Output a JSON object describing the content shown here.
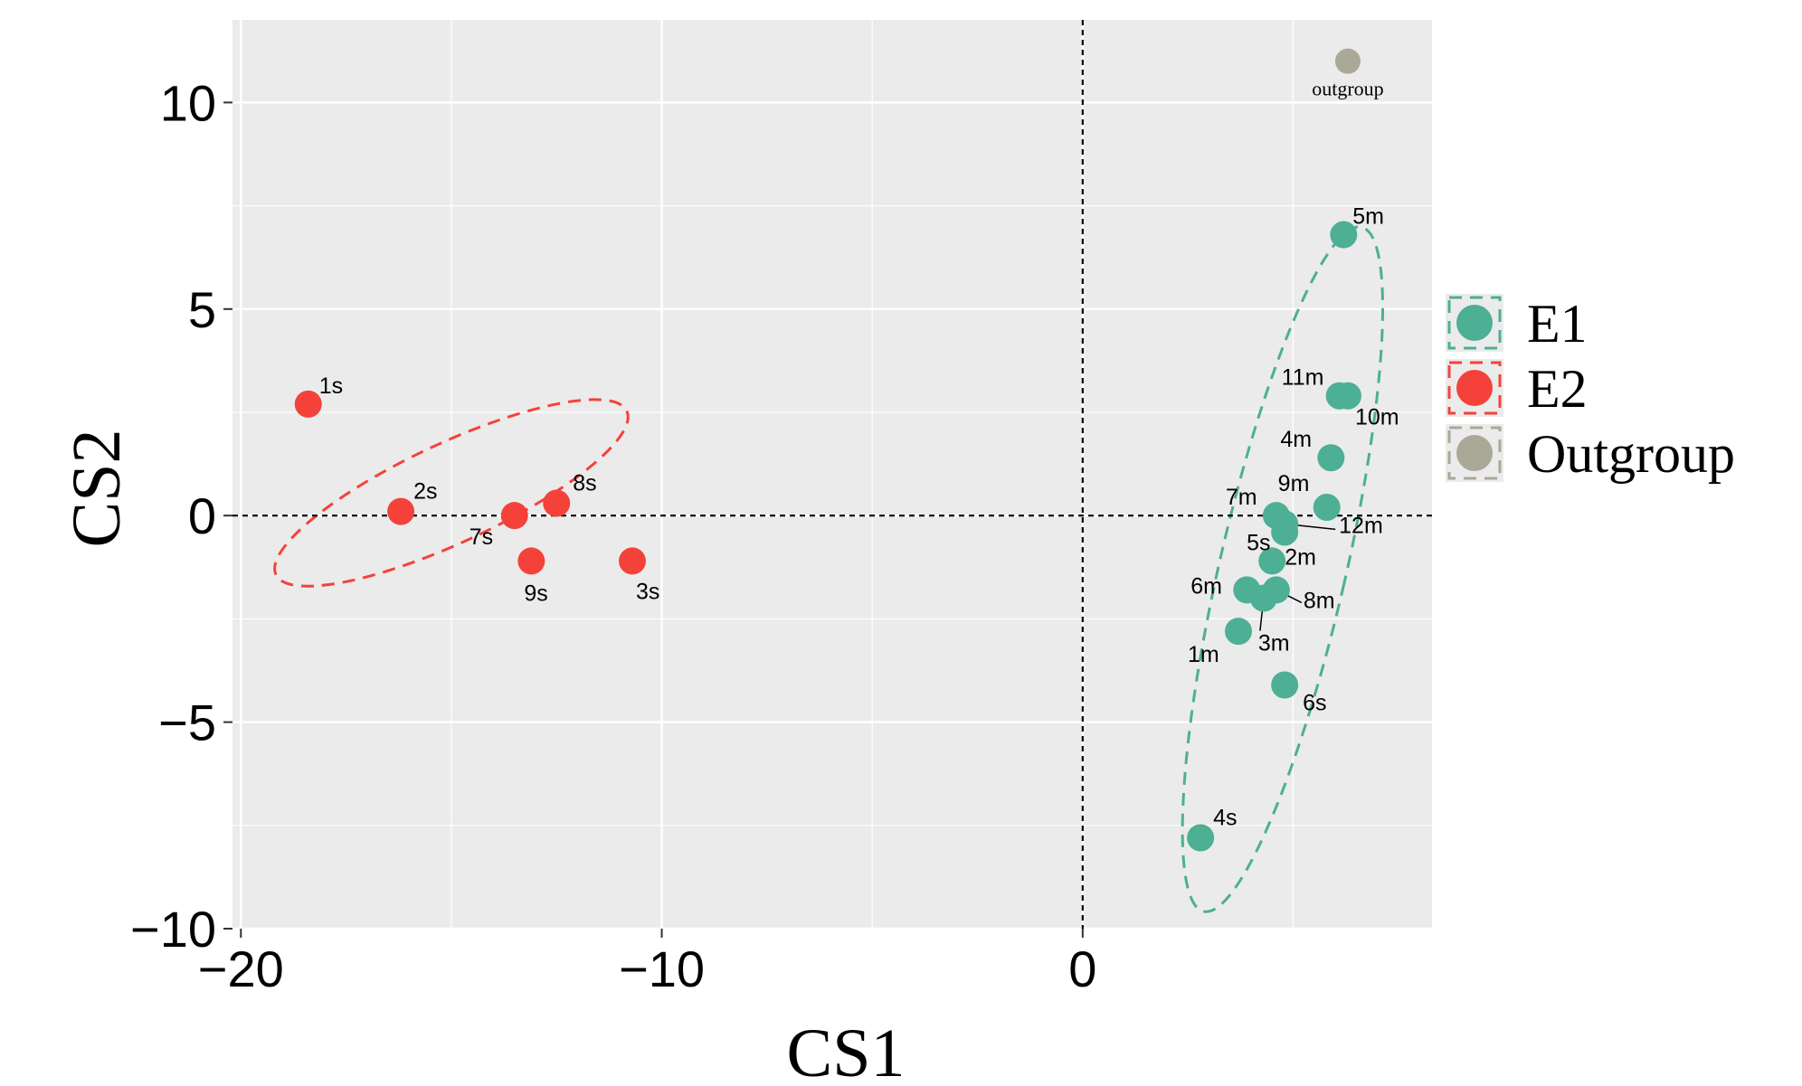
{
  "chart_data": {
    "type": "scatter",
    "xlabel": "CS1",
    "ylabel": "CS2",
    "xlim": [
      -20.2,
      8.3
    ],
    "ylim": [
      -10.0,
      12.0
    ],
    "xticks": [
      -20,
      -10,
      0
    ],
    "yticks": [
      10,
      5,
      0,
      -5,
      -10
    ],
    "xtick_labels": [
      "−20",
      "−10",
      "0"
    ],
    "ytick_labels": [
      "10",
      "5",
      "0",
      "−5",
      "−10"
    ],
    "grid": true,
    "reference_lines": {
      "x": 0,
      "y": 0
    },
    "legend_position": "right",
    "colors": {
      "E1": "#4daf94",
      "E2": "#f4423a",
      "Outgroup": "#aaa897"
    },
    "series": [
      {
        "name": "E1",
        "color": "#4daf94",
        "points": [
          {
            "label": "5m",
            "x": 6.2,
            "y": 6.8
          },
          {
            "label": "11m",
            "x": 6.1,
            "y": 2.9
          },
          {
            "label": "10m",
            "x": 6.3,
            "y": 2.9
          },
          {
            "label": "4m",
            "x": 5.9,
            "y": 1.4
          },
          {
            "label": "9m",
            "x": 5.8,
            "y": 0.2
          },
          {
            "label": "7m",
            "x": 4.6,
            "y": 0.0
          },
          {
            "label": "12m",
            "x": 4.8,
            "y": -0.2
          },
          {
            "label": "5s",
            "x": 4.8,
            "y": -0.4
          },
          {
            "label": "2m",
            "x": 4.5,
            "y": -1.1
          },
          {
            "label": "6m",
            "x": 3.9,
            "y": -1.8
          },
          {
            "label": "8m",
            "x": 4.6,
            "y": -1.8
          },
          {
            "label": "3m",
            "x": 4.3,
            "y": -2.0
          },
          {
            "label": "1m",
            "x": 3.7,
            "y": -2.8
          },
          {
            "label": "6s",
            "x": 4.8,
            "y": -4.1
          },
          {
            "label": "4s",
            "x": 2.8,
            "y": -7.8
          }
        ]
      },
      {
        "name": "E2",
        "color": "#f4423a",
        "points": [
          {
            "label": "1s",
            "x": -18.4,
            "y": 2.7
          },
          {
            "label": "2s",
            "x": -16.2,
            "y": 0.1
          },
          {
            "label": "7s",
            "x": -13.5,
            "y": 0.0
          },
          {
            "label": "8s",
            "x": -12.5,
            "y": 0.3
          },
          {
            "label": "9s",
            "x": -13.1,
            "y": -1.1
          },
          {
            "label": "3s",
            "x": -10.7,
            "y": -1.1
          }
        ]
      },
      {
        "name": "Outgroup",
        "color": "#aaa897",
        "points": [
          {
            "label": "outgroup",
            "x": 6.3,
            "y": 11.0
          }
        ]
      }
    ],
    "ellipses": [
      {
        "series": "E1",
        "center": [
          4.75,
          -1.3
        ],
        "semi_axes": [
          1.5,
          8.5
        ],
        "angle_deg": 13
      },
      {
        "series": "E2",
        "center": [
          -15.0,
          0.55
        ],
        "semi_axes": [
          4.6,
          1.2
        ],
        "angle_deg": -25
      }
    ],
    "legend": [
      {
        "label": "E1",
        "series": "E1"
      },
      {
        "label": "E2",
        "series": "E2"
      },
      {
        "label": "Outgroup",
        "series": "Outgroup"
      }
    ]
  }
}
